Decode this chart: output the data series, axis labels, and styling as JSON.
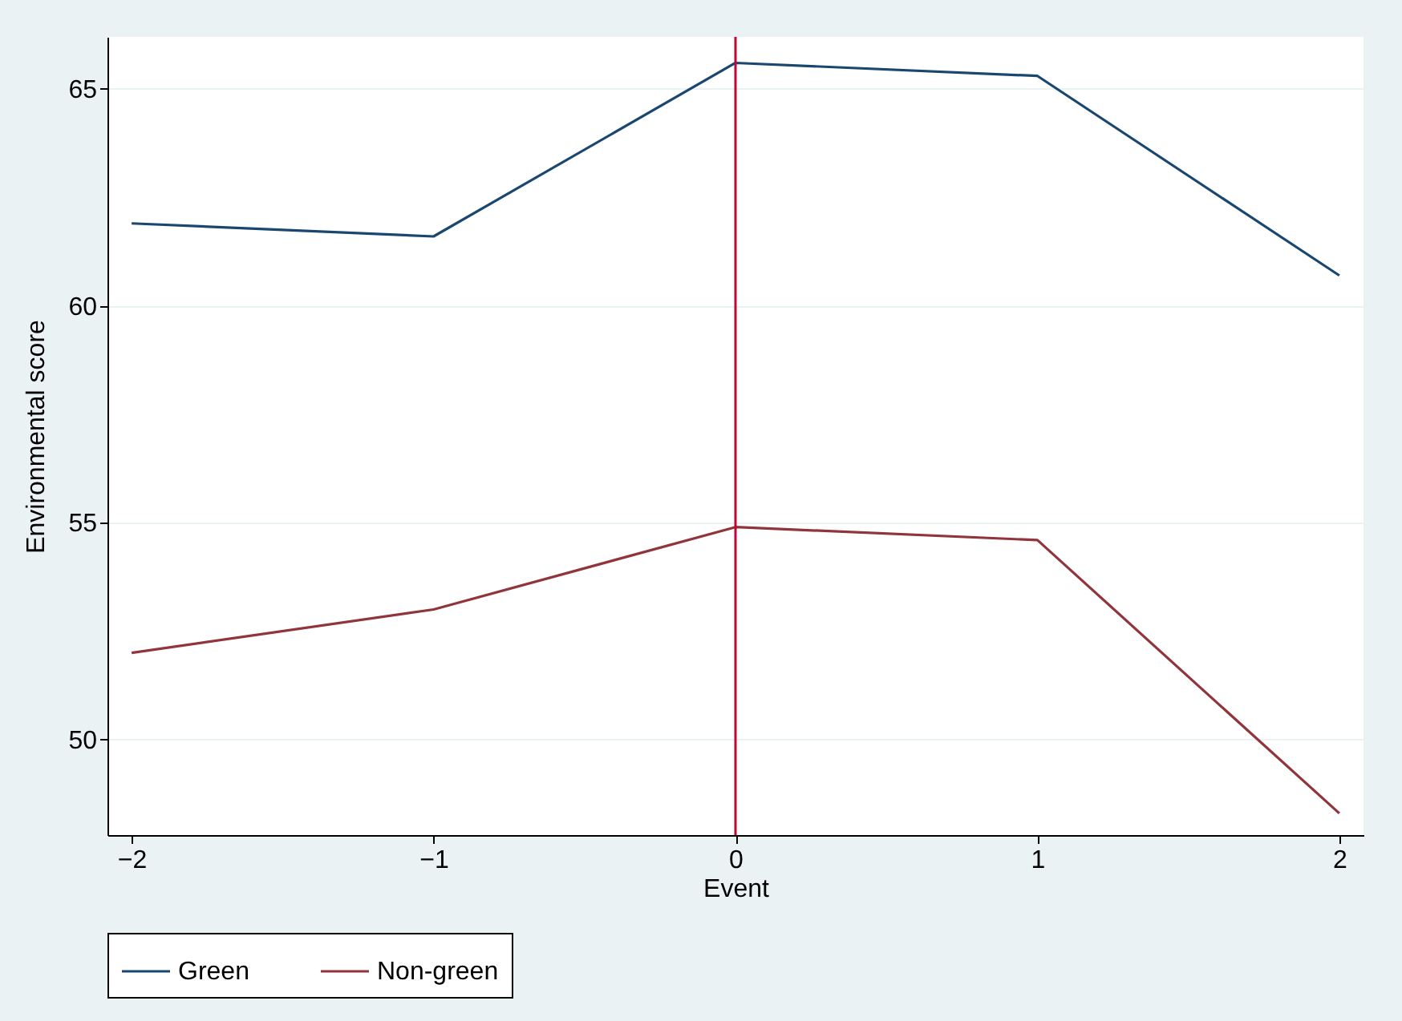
{
  "chart_data": {
    "type": "line",
    "xlabel": "Event",
    "ylabel": "Environmental score",
    "x": [
      -2,
      -1,
      0,
      1,
      2
    ],
    "series": [
      {
        "name": "Green",
        "color": "#1a476f",
        "values": [
          61.9,
          61.6,
          65.6,
          65.3,
          60.7
        ]
      },
      {
        "name": "Non-green",
        "color": "#90353b",
        "values": [
          52.0,
          53.0,
          54.9,
          54.6,
          48.3
        ]
      }
    ],
    "xlim": [
      -2.08,
      2.08
    ],
    "xticks": [
      -2,
      -1,
      0,
      1,
      2
    ],
    "ylim": [
      47.8,
      66.2
    ],
    "yticks": [
      50,
      55,
      60,
      65
    ],
    "grid": "y",
    "legend": "bottom",
    "ref_lines": [
      {
        "axis": "x",
        "value": 0,
        "color": "#c10534"
      }
    ]
  }
}
